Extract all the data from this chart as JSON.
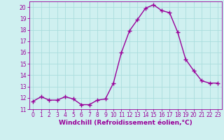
{
  "x": [
    0,
    1,
    2,
    3,
    4,
    5,
    6,
    7,
    8,
    9,
    10,
    11,
    12,
    13,
    14,
    15,
    16,
    17,
    18,
    19,
    20,
    21,
    22,
    23
  ],
  "y": [
    11.7,
    12.1,
    11.8,
    11.8,
    12.1,
    11.9,
    11.4,
    11.4,
    11.8,
    11.9,
    13.3,
    16.0,
    17.9,
    18.9,
    19.9,
    20.2,
    19.7,
    19.5,
    17.8,
    15.4,
    14.4,
    13.5,
    13.3,
    13.3
  ],
  "line_color": "#990099",
  "marker": "+",
  "marker_size": 4,
  "linewidth": 1.0,
  "xlabel": "Windchill (Refroidissement éolien,°C)",
  "ylim": [
    11,
    20.5
  ],
  "xlim": [
    -0.5,
    23.5
  ],
  "yticks": [
    11,
    12,
    13,
    14,
    15,
    16,
    17,
    18,
    19,
    20
  ],
  "xticks": [
    0,
    1,
    2,
    3,
    4,
    5,
    6,
    7,
    8,
    9,
    10,
    11,
    12,
    13,
    14,
    15,
    16,
    17,
    18,
    19,
    20,
    21,
    22,
    23
  ],
  "bg_color": "#cff0f0",
  "grid_color": "#aadddd",
  "tick_fontsize": 5.5,
  "xlabel_fontsize": 6.5
}
